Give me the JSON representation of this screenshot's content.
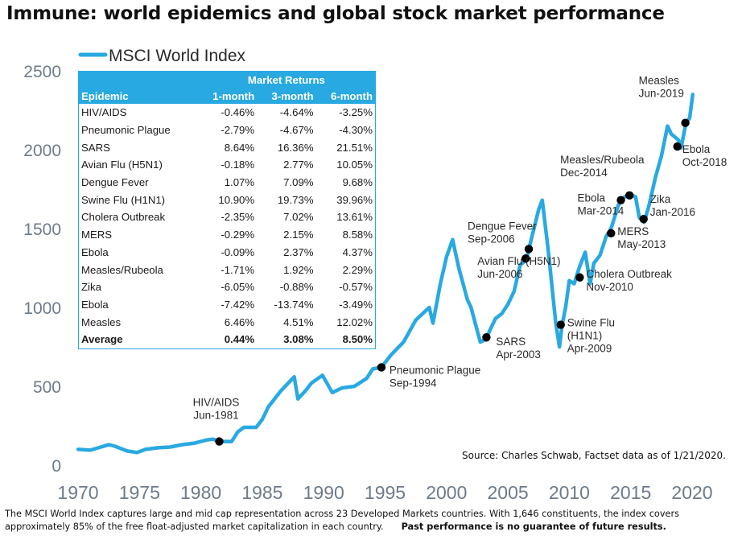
{
  "title": "Immune: world epidemics and global stock market performance",
  "source": "Source: Charles Schwab, Factset data as of 1/21/2020.",
  "footnote": "The MSCI World Index captures large and mid cap representation across 23 Developed Markets countries. With 1,646 constituents, the index covers approximately 85% of the free float-adjusted market capitalization in each country.",
  "disclaimer": "Past performance is no guarantee of future results.",
  "colors": {
    "line": "#29a9e1",
    "marker": "#000000",
    "axis_text": "#6e7b8a",
    "table_header": "#29a9e1"
  },
  "table": {
    "group_header": "Market Returns",
    "headers": [
      "Epidemic",
      "1-month",
      "3-month",
      "6-month"
    ],
    "rows": [
      [
        "HIV/AIDS",
        "-0.46%",
        "-4.64%",
        "-3.25%"
      ],
      [
        "Pneumonic Plague",
        "-2.79%",
        "-4.67%",
        "-4.30%"
      ],
      [
        "SARS",
        "8.64%",
        "16.36%",
        "21.51%"
      ],
      [
        "Avian Flu (H5N1)",
        "-0.18%",
        "2.77%",
        "10.05%"
      ],
      [
        "Dengue Fever",
        "1.07%",
        "7.09%",
        "9.68%"
      ],
      [
        "Swine Flu (H1N1)",
        "10.90%",
        "19.73%",
        "39.96%"
      ],
      [
        "Cholera Outbreak",
        "-2.35%",
        "7.02%",
        "13.61%"
      ],
      [
        "MERS",
        "-0.29%",
        "2.15%",
        "8.58%"
      ],
      [
        "Ebola",
        "-0.09%",
        "2.37%",
        "4.37%"
      ],
      [
        "Measles/Rubeola",
        "-1.71%",
        "1.92%",
        "2.29%"
      ],
      [
        "Zika",
        "-6.05%",
        "-0.88%",
        "-0.57%"
      ],
      [
        "Ebola",
        "-7.42%",
        "-13.74%",
        "-3.49%"
      ],
      [
        "Measles",
        "6.46%",
        "4.51%",
        "12.02%"
      ]
    ],
    "average": [
      "Average",
      "0.44%",
      "3.08%",
      "8.50%"
    ]
  },
  "chart_data": {
    "type": "line",
    "legend": "MSCI World Index",
    "legend_position": "top-left",
    "grid": false,
    "xlim": [
      1970,
      2020
    ],
    "ylim": [
      0,
      2500
    ],
    "x_ticks": [
      1970,
      1975,
      1980,
      1985,
      1990,
      1995,
      2000,
      2005,
      2010,
      2015,
      2020
    ],
    "y_ticks": [
      0,
      500,
      1000,
      1500,
      2000,
      2500
    ],
    "series": [
      {
        "name": "MSCI World Index",
        "x": [
          1970.0,
          1971.0,
          1972.5,
          1973.0,
          1974.0,
          1974.8,
          1975.5,
          1976.5,
          1977.5,
          1978.5,
          1979.5,
          1980.5,
          1981.0,
          1981.5,
          1982.5,
          1983.0,
          1983.5,
          1984.5,
          1985.0,
          1985.5,
          1986.0,
          1986.5,
          1987.6,
          1987.9,
          1988.5,
          1989.0,
          1989.9,
          1990.7,
          1991.5,
          1992.5,
          1993.5,
          1994.0,
          1994.7,
          1995.5,
          1996.5,
          1997.5,
          1998.6,
          1998.9,
          1999.5,
          2000.0,
          2000.5,
          2001.0,
          2001.7,
          2002.0,
          2002.75,
          2003.25,
          2003.5,
          2004.0,
          2004.5,
          2005.0,
          2005.5,
          2006.0,
          2006.5,
          2006.8,
          2007.5,
          2007.8,
          2008.3,
          2008.9,
          2009.2,
          2009.4,
          2009.7,
          2010.0,
          2010.4,
          2010.8,
          2011.3,
          2011.7,
          2012.0,
          2012.5,
          2013.0,
          2013.4,
          2014.0,
          2014.5,
          2014.9,
          2015.4,
          2015.7,
          2016.1,
          2016.5,
          2017.0,
          2017.5,
          2018.0,
          2018.3,
          2018.9,
          2019.1,
          2019.5,
          2019.8,
          2020.05
        ],
        "values": [
          100,
          95,
          130,
          120,
          90,
          80,
          100,
          110,
          115,
          130,
          140,
          160,
          165,
          150,
          150,
          210,
          240,
          240,
          290,
          370,
          420,
          470,
          560,
          420,
          470,
          520,
          570,
          460,
          490,
          500,
          550,
          610,
          620,
          700,
          780,
          920,
          1000,
          900,
          1150,
          1320,
          1430,
          1250,
          1050,
          1000,
          780,
          800,
          850,
          930,
          960,
          1020,
          1100,
          1270,
          1300,
          1400,
          1620,
          1680,
          1350,
          900,
          750,
          880,
          1000,
          1170,
          1150,
          1250,
          1350,
          1150,
          1280,
          1330,
          1450,
          1500,
          1650,
          1700,
          1720,
          1700,
          1570,
          1540,
          1650,
          1820,
          1960,
          2150,
          2100,
          2060,
          2010,
          2170,
          2200,
          2350
        ]
      }
    ],
    "events": [
      {
        "x": 1981.5,
        "y": 150,
        "label": "HIV/AIDS\nJun-1981"
      },
      {
        "x": 1994.7,
        "y": 620,
        "label": "Pneumonic Plague\nSep-1994"
      },
      {
        "x": 2003.25,
        "y": 810,
        "label": "SARS\nApr-2003"
      },
      {
        "x": 2006.45,
        "y": 1310,
        "label": "Avian Flu (H5N1)\nJun-2006"
      },
      {
        "x": 2006.7,
        "y": 1370,
        "label": "Dengue Fever\nSep-2006"
      },
      {
        "x": 2009.3,
        "y": 890,
        "label": "Swine Flu\n(H1N1)\nApr-2009"
      },
      {
        "x": 2010.85,
        "y": 1190,
        "label": "Cholera Outbreak\nNov-2010"
      },
      {
        "x": 2013.4,
        "y": 1470,
        "label": "MERS\nMay-2013"
      },
      {
        "x": 2014.2,
        "y": 1680,
        "label": "Ebola\nMar-2014"
      },
      {
        "x": 2014.9,
        "y": 1710,
        "label": "Measles/Rubeola\nDec-2014"
      },
      {
        "x": 2016.05,
        "y": 1560,
        "label": "Zika\nJan-2016"
      },
      {
        "x": 2018.8,
        "y": 2020,
        "label": "Ebola\nOct-2018"
      },
      {
        "x": 2019.45,
        "y": 2170,
        "label": "Measles\nJun-2019"
      }
    ]
  }
}
